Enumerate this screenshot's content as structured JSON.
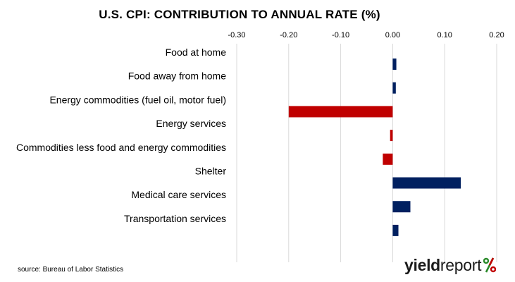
{
  "chart_data": {
    "type": "bar",
    "orientation": "horizontal",
    "title": "U.S. CPI: CONTRIBUTION TO ANNUAL RATE (%)",
    "categories": [
      "Food at home",
      "Food away from home",
      "Energy commodities (fuel oil, motor fuel)",
      "Energy services",
      "Commodities less food and energy commodities",
      "Shelter",
      "Medical care services",
      "Transportation services"
    ],
    "values": [
      0.007,
      0.006,
      -0.2,
      -0.005,
      -0.019,
      0.131,
      0.034,
      0.011
    ],
    "xlim": [
      -0.3,
      0.2
    ],
    "ticks": [
      -0.3,
      -0.2,
      -0.1,
      0.0,
      0.1,
      0.2
    ],
    "tick_labels": [
      "-0.30",
      "-0.20",
      "-0.10",
      "0.00",
      "0.10",
      "0.20"
    ],
    "x_axis_position": "top",
    "grid": "vertical",
    "colors": {
      "positive": "#002060",
      "negative": "#c00000",
      "grid": "#d9d9d9"
    }
  },
  "source": "source: Bureau of Labor Statistics",
  "logo": {
    "part1": "yield",
    "part2": "report",
    "symbol": "%"
  }
}
